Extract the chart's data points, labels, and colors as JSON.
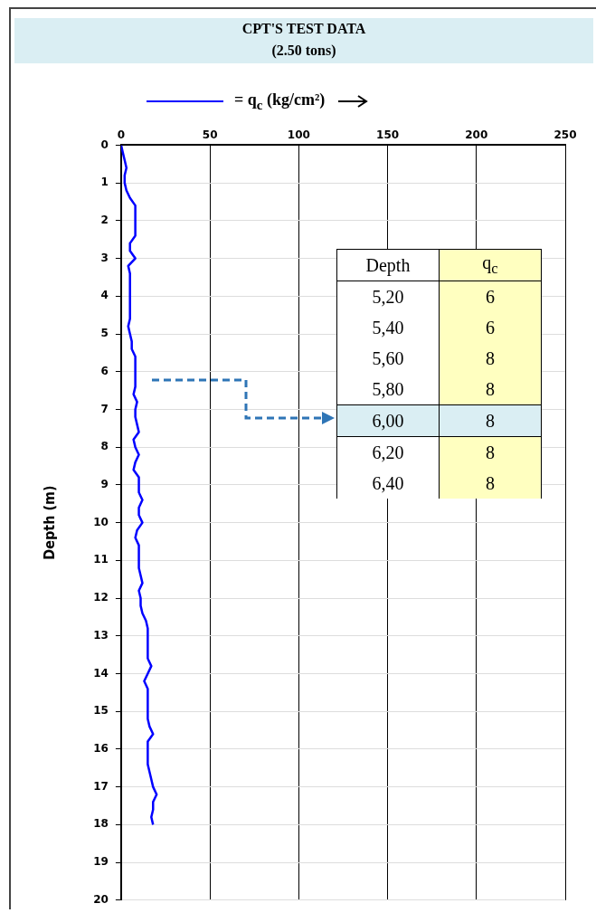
{
  "chart_data": {
    "type": "line",
    "title": "CPT'S TEST DATA",
    "subtitle": "(2.50 tons)",
    "ylabel": "Depth (m)",
    "legend": "top",
    "xlim": [
      0,
      250
    ],
    "xticks": [
      0,
      50,
      100,
      150,
      200,
      250
    ],
    "ylim": [
      20,
      0
    ],
    "yticks": [
      0,
      1,
      2,
      3,
      4,
      5,
      6,
      7,
      8,
      9,
      10,
      11,
      12,
      13,
      14,
      15,
      16,
      17,
      18,
      19,
      20
    ],
    "grid": true,
    "series": [
      {
        "name": "= q$_{c}$ (kg/cm²)",
        "color": "#0000ff",
        "x": [
          0,
          1,
          2,
          3,
          2,
          2,
          3,
          5,
          8,
          8,
          8,
          8,
          8,
          5,
          5,
          8,
          4,
          5,
          5,
          5,
          5,
          5,
          5,
          5,
          4,
          5,
          6,
          6,
          8,
          8,
          8,
          8,
          8,
          7,
          9,
          8,
          8,
          9,
          10,
          7,
          8,
          10,
          8,
          7,
          10,
          10,
          10,
          12,
          10,
          10,
          12,
          9,
          8,
          10,
          10,
          10,
          10,
          11,
          12,
          10,
          11,
          11,
          12,
          14,
          15,
          15,
          15,
          15,
          15,
          17,
          15,
          13,
          15,
          15,
          15,
          15,
          15,
          16,
          18,
          15,
          15,
          15,
          15,
          16,
          17,
          18,
          20,
          18,
          18,
          17,
          18
        ],
        "values": [
          0,
          0.2,
          0.4,
          0.6,
          0.8,
          1,
          1.2,
          1.4,
          1.6,
          1.8,
          2,
          2.2,
          2.4,
          2.6,
          2.8,
          3,
          3.2,
          3.4,
          3.6,
          3.8,
          4,
          4.2,
          4.4,
          4.6,
          4.8,
          5,
          5.2,
          5.4,
          5.6,
          5.8,
          6,
          6.2,
          6.4,
          6.6,
          6.8,
          7,
          7.2,
          7.4,
          7.6,
          7.8,
          8,
          8.2,
          8.4,
          8.6,
          8.8,
          9,
          9.2,
          9.4,
          9.6,
          9.8,
          10,
          10.2,
          10.4,
          10.6,
          10.8,
          11,
          11.2,
          11.4,
          11.6,
          11.8,
          12,
          12.2,
          12.4,
          12.6,
          12.8,
          13,
          13.2,
          13.4,
          13.6,
          13.8,
          14,
          14.2,
          14.4,
          14.6,
          14.8,
          15,
          15.2,
          15.4,
          15.6,
          15.8,
          16,
          16.2,
          16.4,
          16.6,
          16.8,
          17,
          17.2,
          17.4,
          17.6,
          17.8,
          18
        ]
      }
    ],
    "annotations": [
      "Depth",
      "q$_{c}$",
      "5,20",
      "6",
      "5,40",
      "6",
      "5,60",
      "8",
      "5,80",
      "8",
      "6,00",
      "8",
      "6,20",
      "8",
      "6,40",
      "8"
    ]
  }
}
